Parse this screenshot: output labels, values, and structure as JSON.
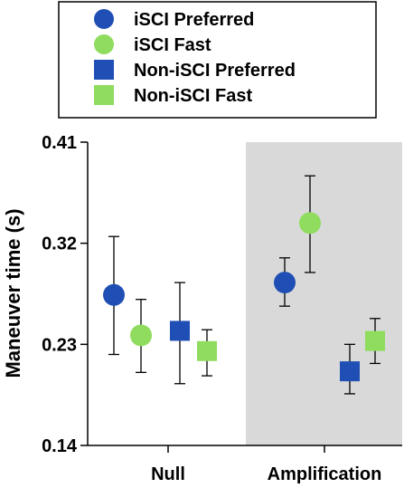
{
  "chart_data": {
    "type": "scatter",
    "categories": [
      "Null",
      "Amplification"
    ],
    "ylabel": "Maneuver time (s)",
    "ylim": [
      0.14,
      0.41
    ],
    "yticks": [
      "0.41",
      "0.32",
      "0.23",
      "0.14"
    ],
    "ytick_values": [
      0.41,
      0.32,
      0.23,
      0.14
    ],
    "legend_position": "top",
    "shaded_condition": "Amplification",
    "shade_color": "#d9d9d9",
    "series": [
      {
        "name": "iSCI Preferred",
        "marker": "circle",
        "color": "#1f4fb4",
        "values": [
          0.274,
          0.285
        ],
        "err_low": [
          0.221,
          0.264
        ],
        "err_high": [
          0.326,
          0.307
        ]
      },
      {
        "name": "iSCI Fast",
        "marker": "circle",
        "color": "#8fdc5e",
        "values": [
          0.238,
          0.338
        ],
        "err_low": [
          0.205,
          0.294
        ],
        "err_high": [
          0.27,
          0.38
        ]
      },
      {
        "name": "Non-iSCI Preferred",
        "marker": "square",
        "color": "#1f4fb4",
        "values": [
          0.242,
          0.206
        ],
        "err_low": [
          0.195,
          0.186
        ],
        "err_high": [
          0.285,
          0.23
        ]
      },
      {
        "name": "Non-iSCI Fast",
        "marker": "square",
        "color": "#8fdc5e",
        "values": [
          0.224,
          0.233
        ],
        "err_low": [
          0.202,
          0.213
        ],
        "err_high": [
          0.243,
          0.253
        ]
      }
    ]
  }
}
